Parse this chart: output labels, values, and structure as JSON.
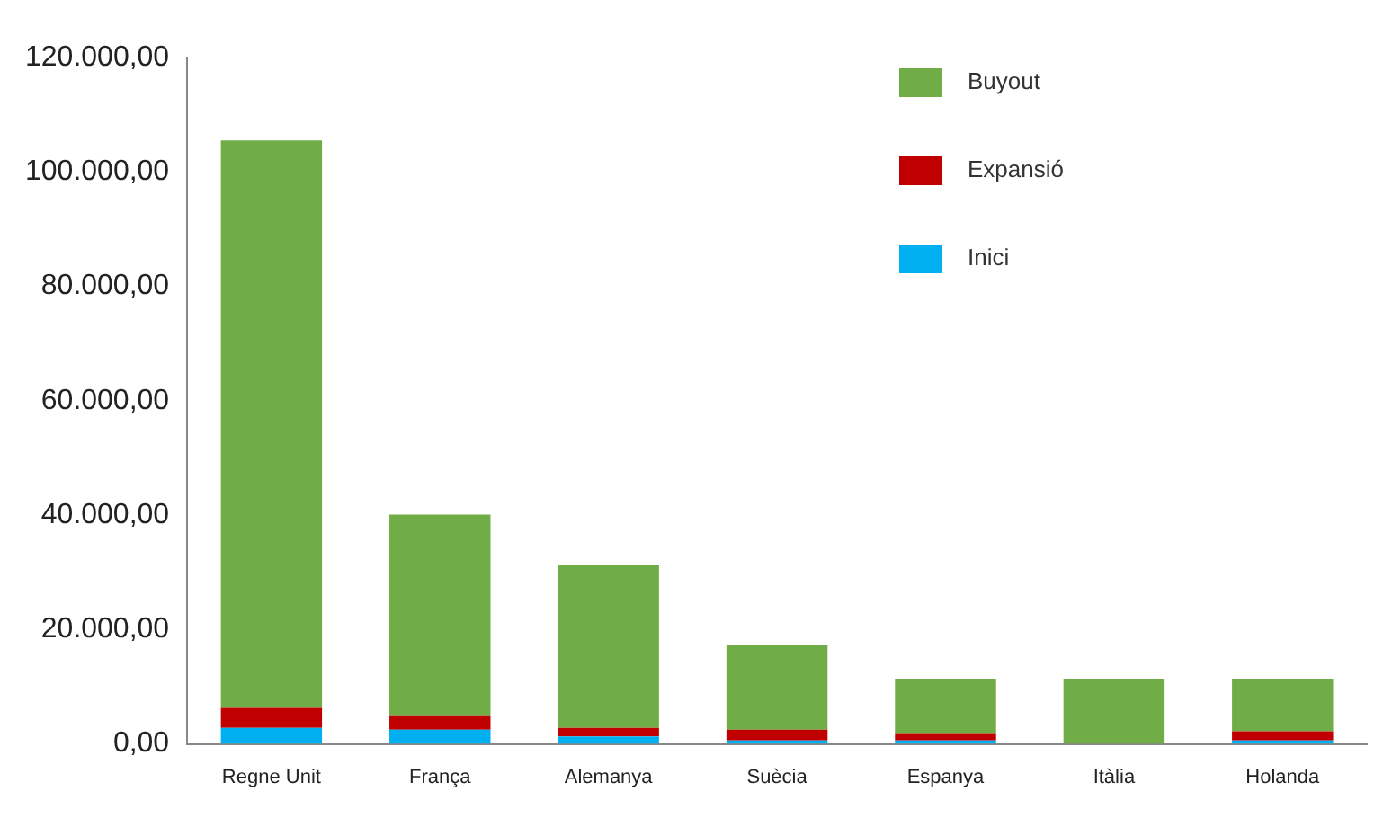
{
  "chart_data": {
    "type": "bar",
    "stacked": true,
    "categories": [
      "Regne Unit",
      "França",
      "Alemanya",
      "Suècia",
      "Espanya",
      "Itàlia",
      "Holanda"
    ],
    "series": [
      {
        "name": "Inici",
        "color": "#00b0f0",
        "values": [
          2800,
          2500,
          1300,
          600,
          600,
          0,
          600
        ]
      },
      {
        "name": "Expansió",
        "color": "#c00000",
        "values": [
          3500,
          2500,
          1500,
          1900,
          1300,
          0,
          1600
        ]
      },
      {
        "name": "Buyout",
        "color": "#70ad47",
        "values": [
          99200,
          35100,
          28500,
          14900,
          9500,
          11400,
          9200
        ]
      }
    ],
    "ylim": [
      0,
      120000
    ],
    "yticks": [
      {
        "value": 0,
        "label": "0,00"
      },
      {
        "value": 20000,
        "label": "20.000,00"
      },
      {
        "value": 40000,
        "label": "40.000,00"
      },
      {
        "value": 60000,
        "label": "60.000,00"
      },
      {
        "value": 80000,
        "label": "80.000,00"
      },
      {
        "value": 100000,
        "label": "100.000,00"
      },
      {
        "value": 120000,
        "label": "120.000,00"
      }
    ],
    "grid": false,
    "legend": "top right"
  }
}
